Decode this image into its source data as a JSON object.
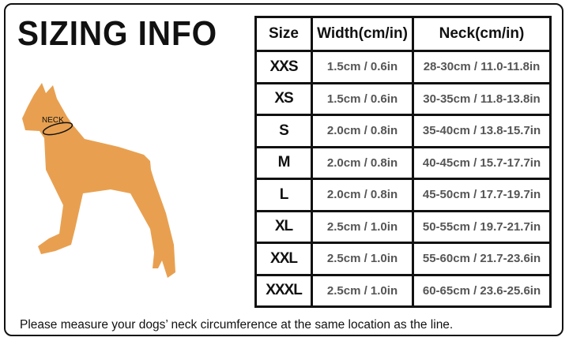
{
  "title": "SIZING INFO",
  "illustration": {
    "neck_label": "NECK",
    "dog_color": "#E8A050"
  },
  "table": {
    "headers": [
      "Size",
      "Width(cm/in)",
      "Neck(cm/in)"
    ],
    "rows": [
      [
        "XXS",
        "1.5cm / 0.6in",
        "28-30cm / 11.0-11.8in"
      ],
      [
        "XS",
        "1.5cm / 0.6in",
        "30-35cm / 11.8-13.8in"
      ],
      [
        "S",
        "2.0cm / 0.8in",
        "35-40cm / 13.8-15.7in"
      ],
      [
        "M",
        "2.0cm / 0.8in",
        "40-45cm / 15.7-17.7in"
      ],
      [
        "L",
        "2.0cm / 0.8in",
        "45-50cm / 17.7-19.7in"
      ],
      [
        "XL",
        "2.5cm / 1.0in",
        "50-55cm / 19.7-21.7in"
      ],
      [
        "XXL",
        "2.5cm / 1.0in",
        "55-60cm / 21.7-23.6in"
      ],
      [
        "XXXL",
        "2.5cm / 1.0in",
        "60-65cm / 23.6-25.6in"
      ]
    ]
  },
  "footer": "Please measure your dogs’  neck circumference at the same location as the line."
}
